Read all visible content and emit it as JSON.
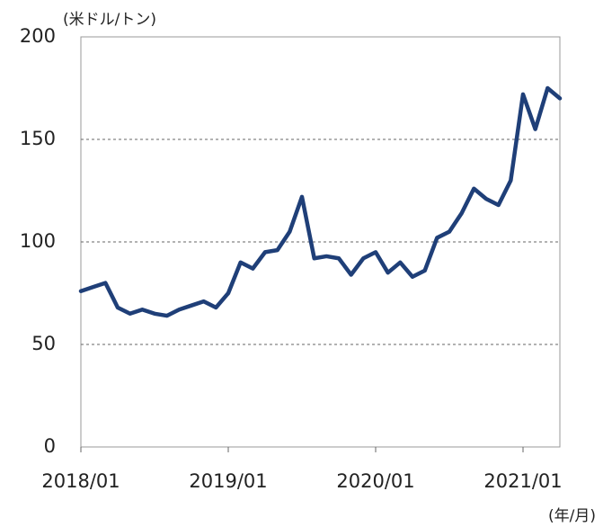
{
  "chart_data": {
    "type": "line",
    "y_unit_label": "(米ドル/トン)",
    "x_unit_label": "(年/月)",
    "x": [
      "2018/01",
      "2018/02",
      "2018/03",
      "2018/04",
      "2018/05",
      "2018/06",
      "2018/07",
      "2018/08",
      "2018/09",
      "2018/10",
      "2018/11",
      "2018/12",
      "2019/01",
      "2019/02",
      "2019/03",
      "2019/04",
      "2019/05",
      "2019/06",
      "2019/07",
      "2019/08",
      "2019/09",
      "2019/10",
      "2019/11",
      "2019/12",
      "2020/01",
      "2020/02",
      "2020/03",
      "2020/04",
      "2020/05",
      "2020/06",
      "2020/07",
      "2020/08",
      "2020/09",
      "2020/10",
      "2020/11",
      "2020/12",
      "2021/01",
      "2021/02",
      "2021/03",
      "2021/04"
    ],
    "series": [
      {
        "color": "#1f3f78",
        "values": [
          76,
          78,
          80,
          68,
          65,
          67,
          65,
          64,
          67,
          69,
          71,
          68,
          75,
          90,
          87,
          95,
          96,
          105,
          122,
          92,
          93,
          92,
          84,
          92,
          95,
          85,
          90,
          83,
          86,
          102,
          105,
          114,
          126,
          121,
          118,
          130,
          172,
          155,
          175,
          170
        ]
      }
    ],
    "xticks": [
      "2018/01",
      "2019/01",
      "2020/01",
      "2021/01"
    ],
    "ylim": [
      0,
      200
    ],
    "yticks": [
      0,
      50,
      100,
      150,
      200
    ],
    "grid": true
  }
}
